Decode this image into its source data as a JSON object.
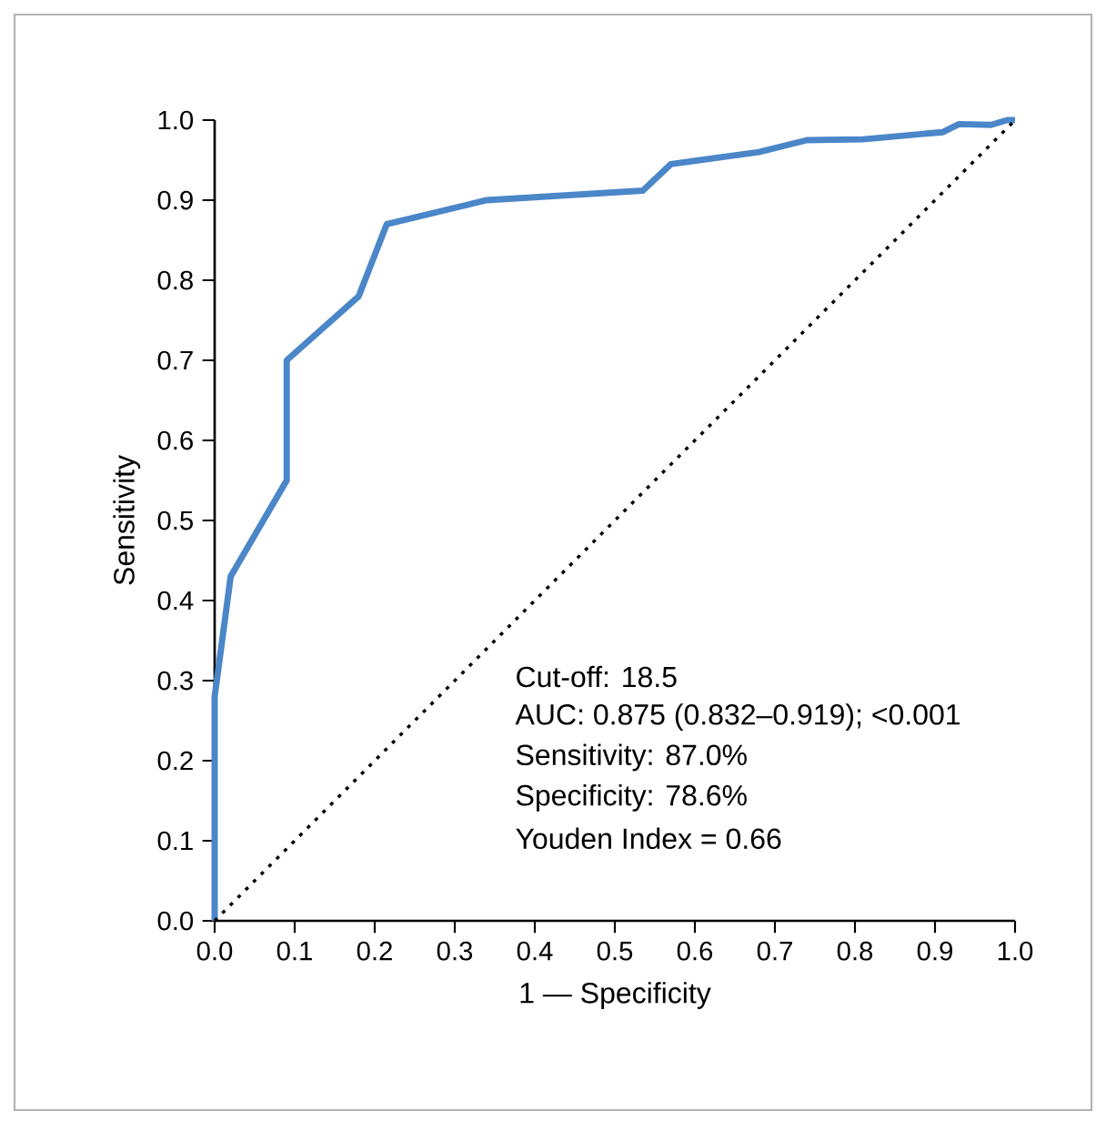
{
  "chart_data": {
    "type": "line",
    "xlabel": "1 — Specificity",
    "ylabel": "Sensitivity",
    "series": [
      {
        "color": "#4a86c8",
        "line_style": "solid",
        "x": [
          0,
          0,
          0.02,
          0.09,
          0.09,
          0.18,
          0.215,
          0.34,
          0.535,
          0.57,
          0.68,
          0.74,
          0.81,
          0.91,
          0.93,
          0.97,
          0.99,
          1
        ],
        "values": [
          0,
          0.28,
          0.43,
          0.55,
          0.7,
          0.78,
          0.87,
          0.9,
          0.912,
          0.945,
          0.96,
          0.975,
          0.976,
          0.985,
          0.995,
          0.994,
          1.0,
          1.0
        ]
      },
      {
        "color": "#000000",
        "line_style": "dotted",
        "x": [
          0,
          1
        ],
        "values": [
          0,
          1
        ]
      }
    ],
    "xlim": [
      0,
      1
    ],
    "ylim": [
      0,
      1
    ],
    "xticks": [
      {
        "value": 0,
        "label": "0.0"
      },
      {
        "value": 0.1,
        "label": "0.1"
      },
      {
        "value": 0.2,
        "label": "0.2"
      },
      {
        "value": 0.3,
        "label": "0.3"
      },
      {
        "value": 0.4,
        "label": "0.4"
      },
      {
        "value": 0.5,
        "label": "0.5"
      },
      {
        "value": 0.6,
        "label": "0.6"
      },
      {
        "value": 0.7,
        "label": "0.7"
      },
      {
        "value": 0.8,
        "label": "0.8"
      },
      {
        "value": 0.9,
        "label": "0.9"
      },
      {
        "value": 1,
        "label": "1.0"
      }
    ],
    "yticks": [
      {
        "value": 0,
        "label": "0.0"
      },
      {
        "value": 0.1,
        "label": "0.1"
      },
      {
        "value": 0.2,
        "label": "0.2"
      },
      {
        "value": 0.3,
        "label": "0.3"
      },
      {
        "value": 0.4,
        "label": "0.4"
      },
      {
        "value": 0.5,
        "label": "0.5"
      },
      {
        "value": 0.6,
        "label": "0.6"
      },
      {
        "value": 0.7,
        "label": "0.7"
      },
      {
        "value": 0.8,
        "label": "0.8"
      },
      {
        "value": 0.9,
        "label": "0.9"
      },
      {
        "value": 1,
        "label": "1.0"
      }
    ],
    "annotations": [
      "Cut-off: 18.5",
      "AUC: 0.875 (0.832–0.919); <0.001",
      "Sensitivity: 87.0%",
      "Specificity: 78.6%",
      "Youden Index = 0.66"
    ],
    "grid": false,
    "marker": "none"
  }
}
